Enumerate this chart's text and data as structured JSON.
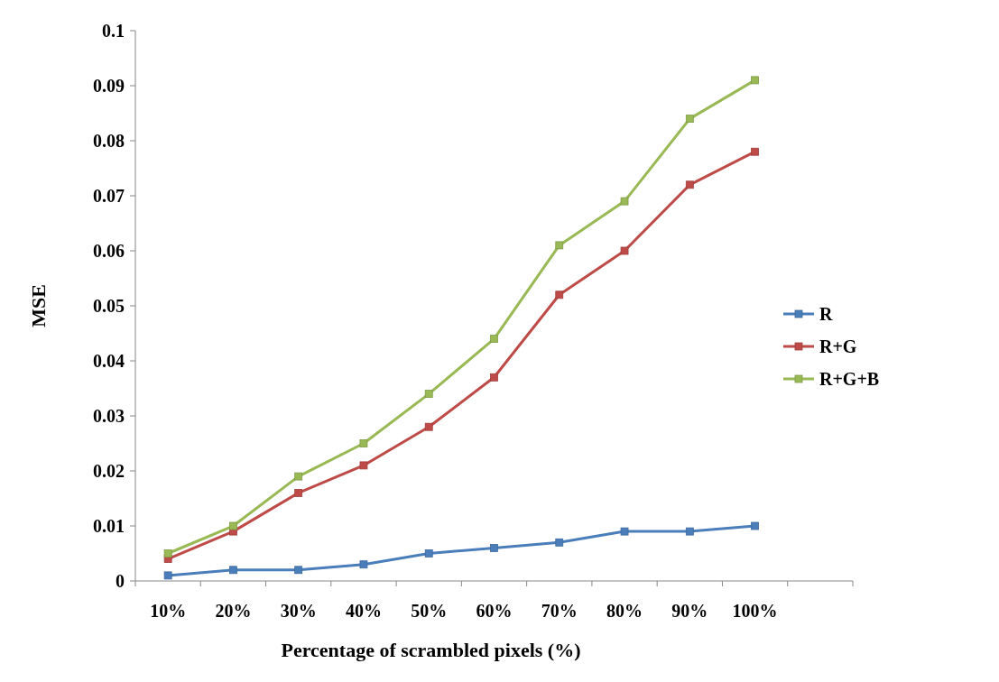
{
  "chart_data": {
    "type": "line",
    "xlabel": "Percentage of scrambled pixels (%)",
    "ylabel": "MSE",
    "categories": [
      "10%",
      "20%",
      "30%",
      "40%",
      "50%",
      "60%",
      "70%",
      "80%",
      "90%",
      "100%",
      null
    ],
    "series": [
      {
        "name": "R",
        "color": "#4a7ebb",
        "values": [
          0.001,
          0.002,
          0.002,
          0.003,
          0.005,
          0.006,
          0.007,
          0.009,
          0.009,
          0.01,
          null
        ]
      },
      {
        "name": "R+G",
        "color": "#be4b48",
        "values": [
          0.004,
          0.009,
          0.016,
          0.021,
          0.028,
          0.037,
          0.052,
          0.06,
          0.072,
          0.078,
          null
        ]
      },
      {
        "name": "R+G+B",
        "color": "#98b954",
        "values": [
          0.005,
          0.01,
          0.019,
          0.025,
          0.034,
          0.044,
          0.061,
          0.069,
          0.084,
          0.091,
          null
        ]
      }
    ],
    "ylim": [
      0,
      0.1
    ],
    "yticks": [
      0,
      0.01,
      0.02,
      0.03,
      0.04,
      0.05,
      0.06,
      0.07,
      0.08,
      0.09,
      0.1
    ],
    "grid": false,
    "legend": "right",
    "marker": "square",
    "line_style": "solid"
  }
}
